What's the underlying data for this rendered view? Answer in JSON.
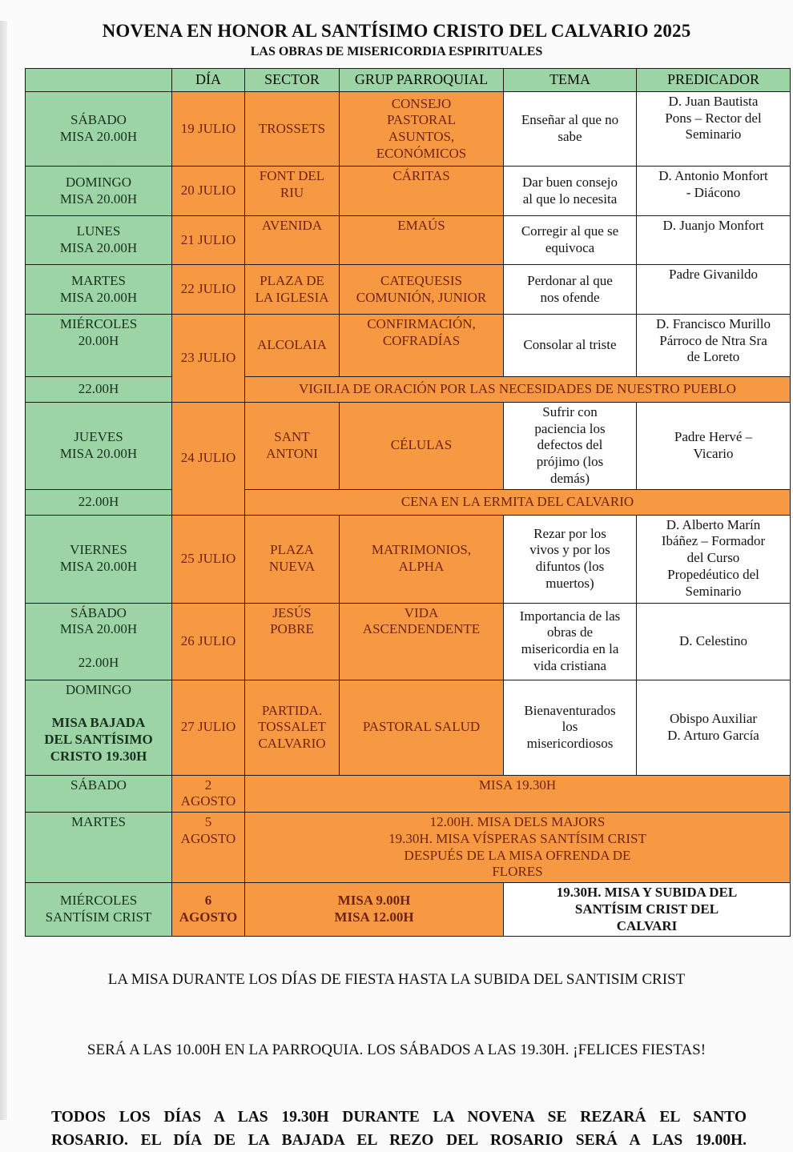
{
  "page": {
    "title": "NOVENA EN HONOR AL SANTÍSIMO CRISTO DEL CALVARIO 2025",
    "subtitle": "LAS OBRAS DE MISERICORDIA ESPIRITUALES"
  },
  "colors": {
    "green_cell": "#9CD4A6",
    "orange_cell": "#F79843",
    "orange_cell_text": "#6E2412",
    "green_cell_text": "#17301F",
    "border": "#1b1b1b"
  },
  "notes": {
    "misa_line1": "LA MISA DURANTE LOS DÍAS DE FIESTA HASTA LA SUBIDA DEL SANTISIM CRIST",
    "misa_line2": "SERÁ A LAS 10.00H EN LA PARROQUIA. LOS SÁBADOS A LAS 19.30H. ¡FELICES FIESTAS!",
    "rosario_line1": "TODOS LOS DÍAS A LAS 19.30H DURANTE LA NOVENA SE REZARÁ EL SANTO",
    "rosario_line2": "ROSARIO. EL DÍA DE LA BAJADA EL REZO DEL ROSARIO SERÁ A LAS 19.00H."
  },
  "table": {
    "header": [
      "",
      "DÍA",
      "SECTOR",
      "GRUP PARROQUIAL",
      "TEMA",
      "PREDICADOR"
    ],
    "rows": [
      {
        "cells": [
          {
            "t": "SÁBADO\nMISA 20.00H",
            "bg": "g"
          },
          {
            "t": "19 JULIO",
            "bg": "o"
          },
          {
            "t": "TROSSETS",
            "bg": "o"
          },
          {
            "t": "CONSEJO\nPASTORAL\nASUNTOS,\nECONÓMICOS",
            "bg": "o"
          },
          {
            "t": "Enseñar al que no\nsabe",
            "bg": "w"
          },
          {
            "t": "D. Juan Bautista\nPons – Rector del\nSeminario",
            "bg": "w",
            "va": "t"
          }
        ]
      },
      {
        "cells": [
          {
            "t": "DOMINGO\nMISA 20.00H",
            "bg": "g"
          },
          {
            "t": "20 JULIO",
            "bg": "o"
          },
          {
            "t": "FONT DEL\nRIU",
            "bg": "o",
            "va": "t"
          },
          {
            "t": "CÁRITAS",
            "bg": "o",
            "va": "t"
          },
          {
            "t": "Dar buen consejo\nal que lo necesita",
            "bg": "w"
          },
          {
            "t": "D. Antonio Monfort\n- Diácono",
            "bg": "w",
            "va": "t"
          }
        ]
      },
      {
        "cells": [
          {
            "t": "LUNES\nMISA 20.00H",
            "bg": "g"
          },
          {
            "t": "21 JULIO",
            "bg": "o"
          },
          {
            "t": "AVENIDA",
            "bg": "o",
            "va": "t"
          },
          {
            "t": "EMAÚS",
            "bg": "o",
            "va": "t"
          },
          {
            "t": "Corregir al que se\nequivoca",
            "bg": "w"
          },
          {
            "t": "D. Juanjo Monfort",
            "bg": "w",
            "va": "t"
          }
        ]
      },
      {
        "cells": [
          {
            "t": "MARTES\nMISA 20.00H",
            "bg": "g"
          },
          {
            "t": "22 JULIO",
            "bg": "o"
          },
          {
            "t": "PLAZA DE\nLA IGLESIA",
            "bg": "o"
          },
          {
            "t": "CATEQUESIS\nCOMUNIÓN, JUNIOR",
            "bg": "o"
          },
          {
            "t": "Perdonar al que\nnos ofende",
            "bg": "w"
          },
          {
            "t": "Padre Givanildo",
            "bg": "w",
            "va": "t"
          }
        ]
      },
      {
        "cells": [
          {
            "t": "MIÉRCOLES\n20.00H",
            "bg": "g",
            "va": "t"
          },
          {
            "t": "23 JULIO",
            "bg": "o",
            "rs": 2
          },
          {
            "t": "ALCOLAIA",
            "bg": "o"
          },
          {
            "t": "CONFIRMACIÓN,\nCOFRADÍAS",
            "bg": "o",
            "va": "t"
          },
          {
            "t": "Consolar al triste",
            "bg": "w"
          },
          {
            "t": "D. Francisco Murillo\nPárroco de Ntra Sra\nde Loreto",
            "bg": "w",
            "va": "t"
          }
        ]
      },
      {
        "cells": [
          {
            "t": "22.00H",
            "bg": "g"
          },
          {
            "t": "VIGILIA DE ORACIÓN POR LAS NECESIDADES DE NUESTRO PUEBLO",
            "bg": "o",
            "cs": 4
          }
        ]
      },
      {
        "cells": [
          {
            "t": "JUEVES\nMISA 20.00H",
            "bg": "g"
          },
          {
            "t": "24 JULIO",
            "bg": "o",
            "rs": 2
          },
          {
            "t": "SANT\nANTONI",
            "bg": "o"
          },
          {
            "t": "CÉLULAS",
            "bg": "o"
          },
          {
            "t": "Sufrir con\npaciencia los\ndefectos del\nprójimo (los\ndemás)",
            "bg": "w"
          },
          {
            "t": "Padre Hervé –\nVicario",
            "bg": "w"
          }
        ]
      },
      {
        "cells": [
          {
            "t": "22.00H",
            "bg": "g"
          },
          {
            "t": "CENA EN LA ERMITA DEL CALVARIO",
            "bg": "o",
            "cs": 4
          }
        ]
      },
      {
        "cells": [
          {
            "t": "VIERNES\nMISA 20.00H",
            "bg": "g"
          },
          {
            "t": "25 JULIO",
            "bg": "o"
          },
          {
            "t": "PLAZA\nNUEVA",
            "bg": "o"
          },
          {
            "t": "MATRIMONIOS,\nALPHA",
            "bg": "o"
          },
          {
            "t": "Rezar por los\nvivos y por los\ndifuntos (los\nmuertos)",
            "bg": "w"
          },
          {
            "t": "D. Alberto Marín\nIbáñez – Formador\ndel Curso\nPropedéutico del\nSeminario",
            "bg": "w",
            "va": "t"
          }
        ]
      },
      {
        "cells": [
          {
            "t": "SÁBADO\nMISA 20.00H\n\n22.00H",
            "bg": "g",
            "va": "t"
          },
          {
            "t": "26 JULIO",
            "bg": "o"
          },
          {
            "t": "JESÚS\nPOBRE",
            "bg": "o",
            "va": "t"
          },
          {
            "t": "VIDA\nASCENDENDENTE",
            "bg": "o",
            "va": "t"
          },
          {
            "t": "Importancia de las\nobras de\nmisericordia en la\nvida cristiana",
            "bg": "w"
          },
          {
            "t": "D. Celestino",
            "bg": "w"
          }
        ]
      },
      {
        "cells": [
          {
            "parts": [
              {
                "t": "DOMINGO",
                "b": false
              },
              {
                "t": "MISA BAJADA\nDEL SANTÍSIMO\nCRISTO 19.30H",
                "b": true
              }
            ],
            "bg": "g",
            "va": "t"
          },
          {
            "t": "27 JULIO",
            "bg": "o"
          },
          {
            "t": "PARTIDA.\nTOSSALET\nCALVARIO",
            "bg": "o"
          },
          {
            "t": "PASTORAL SALUD",
            "bg": "o"
          },
          {
            "t": "Bienaventurados\nlos\nmisericordiosos",
            "bg": "w"
          },
          {
            "t": "Obispo Auxiliar\nD. Arturo García",
            "bg": "w"
          }
        ]
      },
      {
        "cells": [
          {
            "t": "SÁBADO",
            "bg": "g",
            "va": "t"
          },
          {
            "t": "2\nAGOSTO",
            "bg": "o"
          },
          {
            "t": "MISA 19.30H",
            "bg": "o",
            "cs": 4,
            "va": "t"
          }
        ]
      },
      {
        "cells": [
          {
            "t": "MARTES",
            "bg": "g",
            "va": "t"
          },
          {
            "t": "5\nAGOSTO",
            "bg": "o",
            "va": "t"
          },
          {
            "t": "12.00H. MISA DELS MAJORS\n19.30H. MISA VÍSPERAS SANTÍSIM CRIST\nDESPUÉS DE LA MISA OFRENDA DE\nFLORES",
            "bg": "o",
            "cs": 4
          }
        ]
      },
      {
        "cells": [
          {
            "t": "MIÉRCOLES\nSANTÍSIM CRIST",
            "bg": "g"
          },
          {
            "t": "6\nAGOSTO",
            "bg": "o",
            "b": true
          },
          {
            "t": "MISA 9.00H\nMISA 12.00H",
            "bg": "o",
            "cs": 2,
            "b": true
          },
          {
            "t": "19.30H. MISA Y SUBIDA DEL\nSANTÍSIM CRIST DEL\nCALVARI",
            "bg": "w",
            "cs": 2,
            "b": true
          }
        ]
      }
    ]
  }
}
